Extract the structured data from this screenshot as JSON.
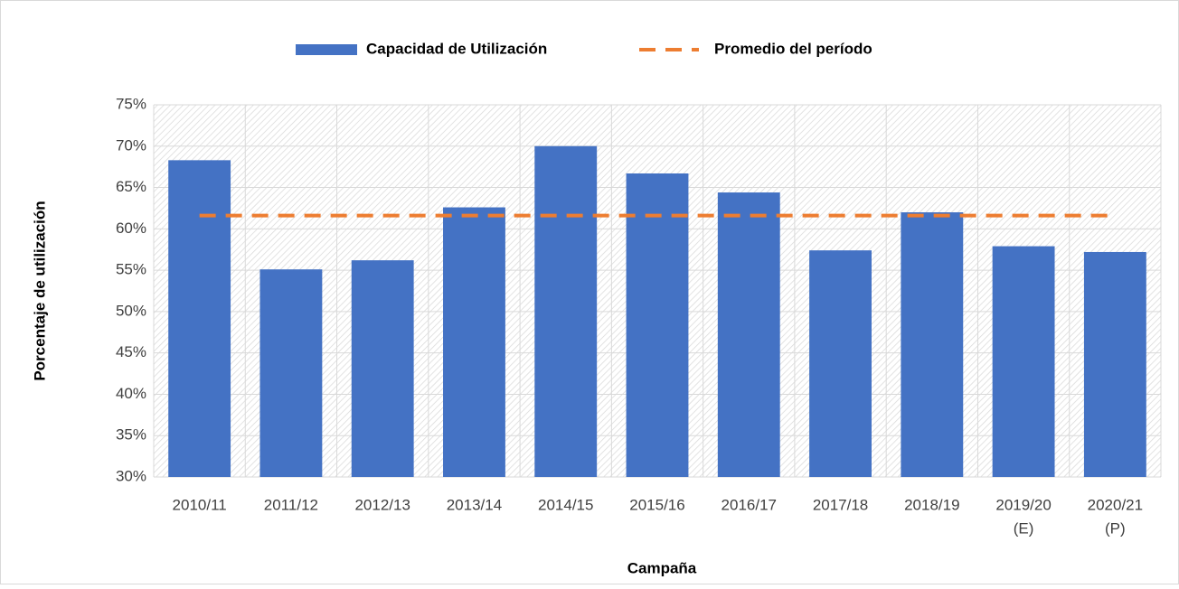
{
  "chart_data": {
    "type": "bar",
    "x_label": "Campaña",
    "y_label": "Porcentaje de utilización",
    "categories": [
      [
        "2010/11"
      ],
      [
        "2011/12"
      ],
      [
        "2012/13"
      ],
      [
        "2013/14"
      ],
      [
        "2014/15"
      ],
      [
        "2015/16"
      ],
      [
        "2016/17"
      ],
      [
        "2017/18"
      ],
      [
        "2018/19"
      ],
      [
        "2019/20",
        "(E)"
      ],
      [
        "2020/21",
        "(P)"
      ]
    ],
    "series": [
      {
        "name": "Capacidad de Utilización",
        "type": "bar",
        "color": "#4472c4",
        "values": [
          68.3,
          55.1,
          56.2,
          62.6,
          70.0,
          66.7,
          64.4,
          57.4,
          62.0,
          57.9,
          57.2
        ]
      },
      {
        "name": "Promedio del período",
        "type": "line",
        "dashed": true,
        "color": "#ed7d31",
        "values": [
          61.6,
          61.6,
          61.6,
          61.6,
          61.6,
          61.6,
          61.6,
          61.6,
          61.6,
          61.6,
          61.6
        ]
      }
    ],
    "ylim": [
      30,
      75
    ],
    "yticks": [
      {
        "value": 30,
        "label": "30%"
      },
      {
        "value": 35,
        "label": "35%"
      },
      {
        "value": 40,
        "label": "40%"
      },
      {
        "value": 45,
        "label": "45%"
      },
      {
        "value": 50,
        "label": "50%"
      },
      {
        "value": 55,
        "label": "55%"
      },
      {
        "value": 60,
        "label": "60%"
      },
      {
        "value": 65,
        "label": "65%"
      },
      {
        "value": 70,
        "label": "70%"
      },
      {
        "value": 75,
        "label": "75%"
      }
    ],
    "grid": true,
    "legend": "top"
  }
}
